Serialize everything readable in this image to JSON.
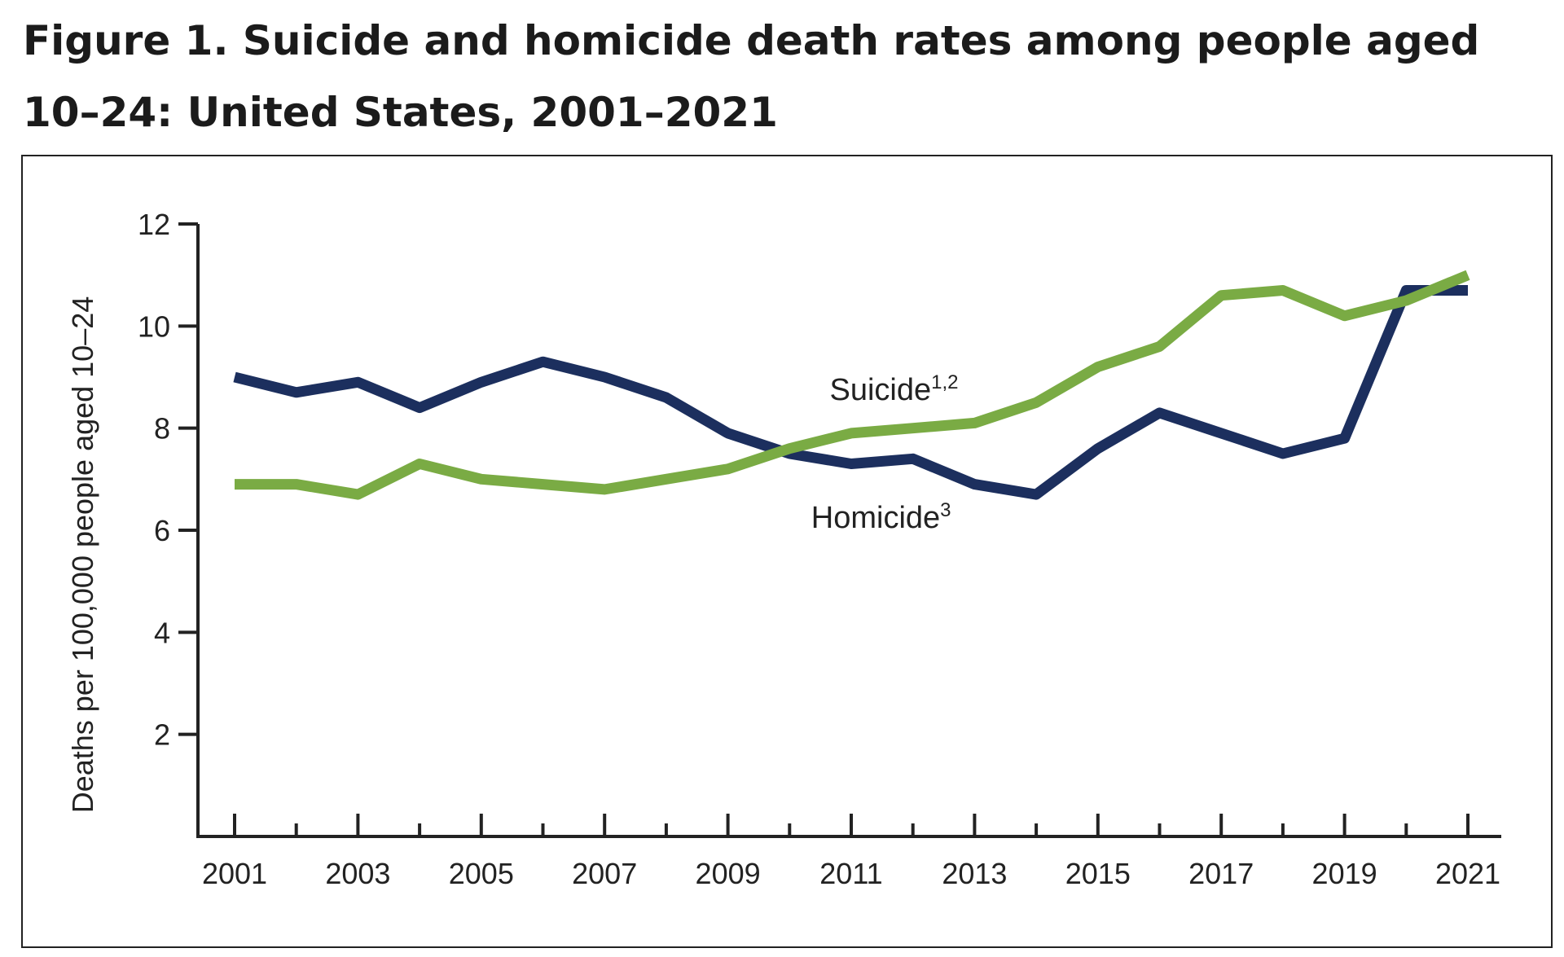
{
  "figure": {
    "title": "Figure 1. Suicide and homicide death rates among people aged 10–24: United States, 2001–2021"
  },
  "chart_data": {
    "type": "line",
    "title": "Figure 1. Suicide and homicide death rates among people aged 10–24: United States, 2001–2021",
    "xlabel": "",
    "ylabel": "Deaths per 100,000 people aged 10–24",
    "x": [
      2001,
      2002,
      2003,
      2004,
      2005,
      2006,
      2007,
      2008,
      2009,
      2010,
      2011,
      2012,
      2013,
      2014,
      2015,
      2016,
      2017,
      2018,
      2019,
      2020,
      2021
    ],
    "x_tick_labels": [
      "2001",
      "2003",
      "2005",
      "2007",
      "2009",
      "2011",
      "2013",
      "2015",
      "2017",
      "2019",
      "2021"
    ],
    "y_tick_labels": [
      "2",
      "4",
      "6",
      "8",
      "10",
      "12"
    ],
    "xlim": [
      2001,
      2021.5
    ],
    "ylim": [
      0,
      12
    ],
    "grid": false,
    "legend": "inline labels",
    "series": [
      {
        "name": "Suicide",
        "label_sup": "1,2",
        "color": "#7aab44",
        "values": [
          6.9,
          6.9,
          6.7,
          7.3,
          7.0,
          6.9,
          6.8,
          7.0,
          7.2,
          7.6,
          7.9,
          8.0,
          8.1,
          8.5,
          9.2,
          9.6,
          10.6,
          10.7,
          10.2,
          10.5,
          11.0
        ]
      },
      {
        "name": "Homicide",
        "label_sup": "3",
        "color": "#1c2f5e",
        "values": [
          9.0,
          8.7,
          8.9,
          8.4,
          8.9,
          9.3,
          9.0,
          8.6,
          7.9,
          7.5,
          7.3,
          7.4,
          6.9,
          6.7,
          7.6,
          8.3,
          7.9,
          7.5,
          7.8,
          10.7,
          10.7
        ]
      }
    ]
  }
}
